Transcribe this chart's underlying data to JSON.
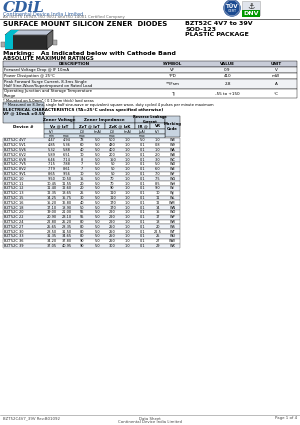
{
  "title": "SURFACE MOUNT SILICON ZENER  DIODES",
  "part_number": "BZT52C 4V7 to 39V",
  "package1": "SOD-123",
  "package2": "PLASTIC PACKAGE",
  "company": "Continental Device India Limited",
  "tagline": "An ISO/TS 16949, ISO 9001 and ISO 14001 Certified Company",
  "marking": "Marking:   As Indicated below with Cathode Band",
  "abs_max_title": "ABSOLUTE MAXIMUM RATINGS",
  "abs_max_headers": [
    "DESCRIPTION",
    "SYMBOL",
    "VALUE",
    "UNIT"
  ],
  "abs_max_rows": [
    [
      "Forward Voltage Drop @ IF 10mA",
      "VF",
      "0.9",
      "V"
    ],
    [
      "Power Dissipation @ 25°C",
      "*PD",
      "410",
      "mW"
    ],
    [
      "Peak Forward Surge Current, 8.3ms Single\nHalf Sine-Wave/Superimposed on Rated Load",
      "**IFsm",
      "2.8",
      "A"
    ],
    [
      "Operating Junction and Storage Temperature\nRange",
      "Tj",
      "-55 to +150",
      "°C"
    ]
  ],
  "note1": "* Mounted on 5.0mm² ( 0.13mm thick) land areas",
  "note2": "** Measured on 8.3ms, single half sine-wave or equivalent square wave, duty cycled 4 pulses per minute maximum",
  "elec_title1": "ELECTRICAL CHARACTERISTICS (TA=25°C unless specified otherwise)",
  "elec_title2": "VF @ 10mA ±0.5V",
  "elec_rows": [
    [
      "BZT52C 4V7",
      "4.47",
      "4.94",
      "78",
      "5.0",
      "500",
      "1.0",
      "5.0",
      "1.0",
      "W8"
    ],
    [
      "BZT52C 5V1",
      "4.85",
      "5.36",
      "60",
      "5.0",
      "480",
      "1.0",
      "0.1",
      "0.8",
      "W9"
    ],
    [
      "BZT52C 5V6",
      "5.32",
      "5.88",
      "40",
      "5.0",
      "400",
      "1.0",
      "0.1",
      "1.0",
      "WA"
    ],
    [
      "BZT52C 6V2",
      "5.89",
      "6.51",
      "10",
      "5.0",
      "200",
      "1.0",
      "0.1",
      "2.0",
      "WB"
    ],
    [
      "BZT52C 6V8",
      "6.46",
      "7.14",
      "8",
      "5.0",
      "150",
      "1.0",
      "0.1",
      "3.0",
      "WC"
    ],
    [
      "BZT52C 7V5",
      "7.15",
      "7.88",
      "7",
      "5.0",
      "50",
      "1.0",
      "0.1",
      "5.0",
      "WD"
    ],
    [
      "BZT52C 8V2",
      "7.79",
      "8.61",
      "7",
      "5.0",
      "50",
      "1.0",
      "0.1",
      "6.0",
      "WE"
    ],
    [
      "BZT52C 9V1",
      "8.65",
      "9.56",
      "10",
      "5.0",
      "50",
      "1.0",
      "0.1",
      "7.0",
      "WF"
    ],
    [
      "BZT52C 10",
      "9.50",
      "10.50",
      "15",
      "5.0",
      "70",
      "1.0",
      "0.1",
      "7.5",
      "WG"
    ],
    [
      "BZT52C 11",
      "10.45",
      "11.55",
      "20",
      "5.0",
      "70",
      "1.0",
      "0.1",
      "8.5",
      "WH"
    ],
    [
      "BZT52C 12",
      "11.40",
      "12.60",
      "20",
      "5.0",
      "90",
      "1.0",
      "0.1",
      "9.0",
      "WI"
    ],
    [
      "BZT52C 13",
      "12.35",
      "13.65",
      "25",
      "5.0",
      "110",
      "1.0",
      "0.1",
      "10",
      "WJ"
    ],
    [
      "BZT52C 15",
      "14.25",
      "15.75",
      "30",
      "5.0",
      "110",
      "1.0",
      "0.1",
      "11",
      "WL"
    ],
    [
      "BZT52C 16",
      "15.20",
      "16.80",
      "40",
      "5.0",
      "170",
      "1.0",
      "0.1",
      "12",
      "WM"
    ],
    [
      "BZT52C 18",
      "17.10",
      "18.90",
      "50",
      "5.0",
      "170",
      "1.0",
      "0.1",
      "14",
      "WN"
    ],
    [
      "BZT52C 20",
      "19.00",
      "21.00",
      "55",
      "5.0",
      "220",
      "1.0",
      "0.1",
      "15",
      "WO"
    ],
    [
      "BZT52C 22",
      "20.90",
      "23.10",
      "55",
      "5.0",
      "220",
      "1.0",
      "0.1",
      "17",
      "WP"
    ],
    [
      "BZT52C 24",
      "22.80",
      "25.20",
      "80",
      "5.0",
      "220",
      "1.0",
      "0.1",
      "18",
      "WR"
    ],
    [
      "BZT52C 27",
      "25.65",
      "28.35",
      "80",
      "5.0",
      "250",
      "1.0",
      "0.1",
      "20",
      "WS"
    ],
    [
      "BZT52C 30",
      "28.50",
      "31.50",
      "80",
      "5.0",
      "250",
      "1.0",
      "0.1",
      "22.5",
      "WT"
    ],
    [
      "BZT52C 33",
      "31.35",
      "34.65",
      "80",
      "5.0",
      "250",
      "1.0",
      "0.1",
      "25",
      "WU"
    ],
    [
      "BZT52C 36",
      "34.20",
      "37.80",
      "90",
      "5.0",
      "250",
      "1.0",
      "0.1",
      "27",
      "WW"
    ],
    [
      "BZT52C 39",
      "37.05",
      "40.95",
      "90",
      "5.0",
      "300",
      "1.0",
      "0.1",
      "29",
      "WX"
    ]
  ],
  "footer_left": "BZT52C4V7_39V Rev:B01092",
  "footer_center": "Data Sheet",
  "footer_right": "Page 1 of 4",
  "footer_company": "Continental Device India Limited",
  "bg_color": "#FFFFFF"
}
